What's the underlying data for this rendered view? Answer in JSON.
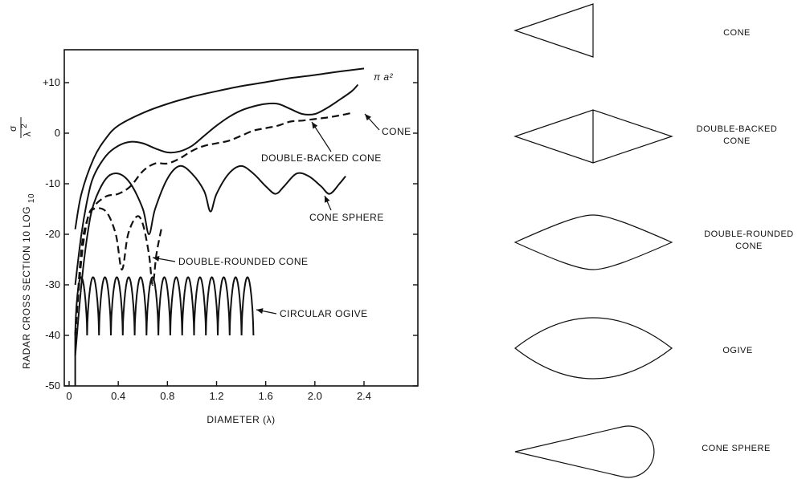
{
  "chart_data": {
    "type": "line",
    "title": "",
    "xlabel": "DIAMETER (λ)",
    "ylabel": {
      "prefix": "RADAR CROSS SECTION 10 LOG",
      "subscript": "10",
      "numerator": "σ",
      "denominator": "λ",
      "denominator_exp": "2"
    },
    "xlim": [
      0,
      2.8
    ],
    "ylim": [
      -50,
      16
    ],
    "xticks": [
      0,
      0.4,
      0.8,
      1.2,
      1.6,
      2.0,
      2.4
    ],
    "xtick_labels": [
      "0",
      "0.4",
      "0.8",
      "1.2",
      "1.6",
      "2.0",
      "2.4"
    ],
    "yticks": [
      10,
      0,
      -10,
      -20,
      -30,
      -40,
      -50
    ],
    "ytick_labels": [
      "+10",
      "0",
      "-10",
      "-20",
      "-30",
      "-40",
      "-50"
    ],
    "grid": false,
    "series": [
      {
        "name": "π a²",
        "style": "solid",
        "points": [
          [
            0.05,
            -19
          ],
          [
            0.1,
            -12
          ],
          [
            0.2,
            -5
          ],
          [
            0.3,
            -1
          ],
          [
            0.4,
            1.5
          ],
          [
            0.6,
            4
          ],
          [
            0.8,
            5.8
          ],
          [
            1.0,
            7.2
          ],
          [
            1.2,
            8.3
          ],
          [
            1.4,
            9.3
          ],
          [
            1.6,
            10.1
          ],
          [
            1.8,
            10.9
          ],
          [
            2.0,
            11.5
          ],
          [
            2.2,
            12.2
          ],
          [
            2.4,
            12.8
          ]
        ]
      },
      {
        "name": "CONE",
        "style": "solid",
        "points": [
          [
            0.05,
            -30
          ],
          [
            0.1,
            -20
          ],
          [
            0.15,
            -13
          ],
          [
            0.2,
            -8.5
          ],
          [
            0.3,
            -4.5
          ],
          [
            0.4,
            -2.5
          ],
          [
            0.5,
            -1.7
          ],
          [
            0.6,
            -2
          ],
          [
            0.7,
            -3
          ],
          [
            0.8,
            -3.8
          ],
          [
            0.9,
            -3.6
          ],
          [
            1.0,
            -2.5
          ],
          [
            1.1,
            -0.5
          ],
          [
            1.2,
            1.5
          ],
          [
            1.3,
            3.2
          ],
          [
            1.4,
            4.5
          ],
          [
            1.5,
            5.3
          ],
          [
            1.6,
            5.8
          ],
          [
            1.7,
            5.8
          ],
          [
            1.8,
            4.8
          ],
          [
            1.9,
            3.8
          ],
          [
            2.0,
            3.8
          ],
          [
            2.1,
            5
          ],
          [
            2.2,
            6.6
          ],
          [
            2.3,
            8.3
          ],
          [
            2.35,
            9.6
          ]
        ]
      },
      {
        "name": "DOUBLE-BACKED CONE",
        "style": "dashed",
        "points": [
          [
            0.05,
            -40
          ],
          [
            0.1,
            -25
          ],
          [
            0.15,
            -17
          ],
          [
            0.2,
            -14.5
          ],
          [
            0.3,
            -12.5
          ],
          [
            0.4,
            -12
          ],
          [
            0.5,
            -10.5
          ],
          [
            0.6,
            -7.5
          ],
          [
            0.7,
            -6
          ],
          [
            0.8,
            -6
          ],
          [
            0.9,
            -5
          ],
          [
            1.0,
            -3.5
          ],
          [
            1.1,
            -2.5
          ],
          [
            1.2,
            -2
          ],
          [
            1.3,
            -1.5
          ],
          [
            1.4,
            -0.5
          ],
          [
            1.5,
            0.5
          ],
          [
            1.6,
            1
          ],
          [
            1.7,
            1.5
          ],
          [
            1.8,
            2.3
          ],
          [
            1.9,
            2.5
          ],
          [
            2.0,
            2.8
          ],
          [
            2.1,
            3.1
          ],
          [
            2.2,
            3.5
          ],
          [
            2.3,
            4
          ]
        ]
      },
      {
        "name": "CONE SPHERE",
        "style": "solid",
        "points": [
          [
            0.05,
            -44
          ],
          [
            0.1,
            -30
          ],
          [
            0.15,
            -20
          ],
          [
            0.2,
            -14
          ],
          [
            0.3,
            -9
          ],
          [
            0.4,
            -8
          ],
          [
            0.5,
            -10
          ],
          [
            0.6,
            -15
          ],
          [
            0.65,
            -20
          ],
          [
            0.7,
            -15
          ],
          [
            0.8,
            -9
          ],
          [
            0.9,
            -6.5
          ],
          [
            1.0,
            -8
          ],
          [
            1.1,
            -11.5
          ],
          [
            1.15,
            -15.5
          ],
          [
            1.2,
            -12
          ],
          [
            1.3,
            -8
          ],
          [
            1.4,
            -6.5
          ],
          [
            1.5,
            -8
          ],
          [
            1.6,
            -10.5
          ],
          [
            1.68,
            -12
          ],
          [
            1.75,
            -10.5
          ],
          [
            1.85,
            -8
          ],
          [
            1.95,
            -8.5
          ],
          [
            2.05,
            -10.5
          ],
          [
            2.12,
            -12
          ],
          [
            2.2,
            -10
          ],
          [
            2.25,
            -8.5
          ]
        ]
      },
      {
        "name": "DOUBLE-ROUNDED CONE",
        "style": "dashed",
        "points": [
          [
            0.05,
            -40
          ],
          [
            0.1,
            -23
          ],
          [
            0.15,
            -17
          ],
          [
            0.2,
            -15
          ],
          [
            0.3,
            -15.5
          ],
          [
            0.38,
            -20
          ],
          [
            0.43,
            -27
          ],
          [
            0.48,
            -20
          ],
          [
            0.55,
            -16.5
          ],
          [
            0.6,
            -18
          ],
          [
            0.65,
            -24
          ],
          [
            0.68,
            -30
          ],
          [
            0.71,
            -24
          ],
          [
            0.75,
            -19
          ]
        ]
      },
      {
        "name": "CIRCULAR OGIVE",
        "style": "solid",
        "x_range": [
          0.05,
          1.5
        ],
        "oscillation": {
          "max": -28.5,
          "min": -40,
          "cycles": 15
        }
      }
    ],
    "annotations": [
      {
        "text": "π a²",
        "target": "π a²"
      },
      {
        "text": "CONE",
        "target": "CONE"
      },
      {
        "text": "DOUBLE-BACKED CONE",
        "target": "DOUBLE-BACKED CONE"
      },
      {
        "text": "CONE SPHERE",
        "target": "CONE SPHERE"
      },
      {
        "text": "DOUBLE-ROUNDED CONE",
        "target": "DOUBLE-ROUNDED CONE"
      },
      {
        "text": "CIRCULAR OGIVE",
        "target": "CIRCULAR OGIVE"
      }
    ]
  },
  "shapes": [
    {
      "shape": "cone",
      "label": [
        "CONE"
      ]
    },
    {
      "shape": "double-backed-cone",
      "label": [
        "DOUBLE-BACKED",
        "CONE"
      ]
    },
    {
      "shape": "double-rounded-cone",
      "label": [
        "DOUBLE-ROUNDED",
        "CONE"
      ]
    },
    {
      "shape": "ogive",
      "label": [
        "OGIVE"
      ]
    },
    {
      "shape": "cone-sphere",
      "label": [
        "CONE SPHERE"
      ]
    }
  ],
  "colors": {
    "ink": "#111111",
    "background": "#ffffff"
  }
}
